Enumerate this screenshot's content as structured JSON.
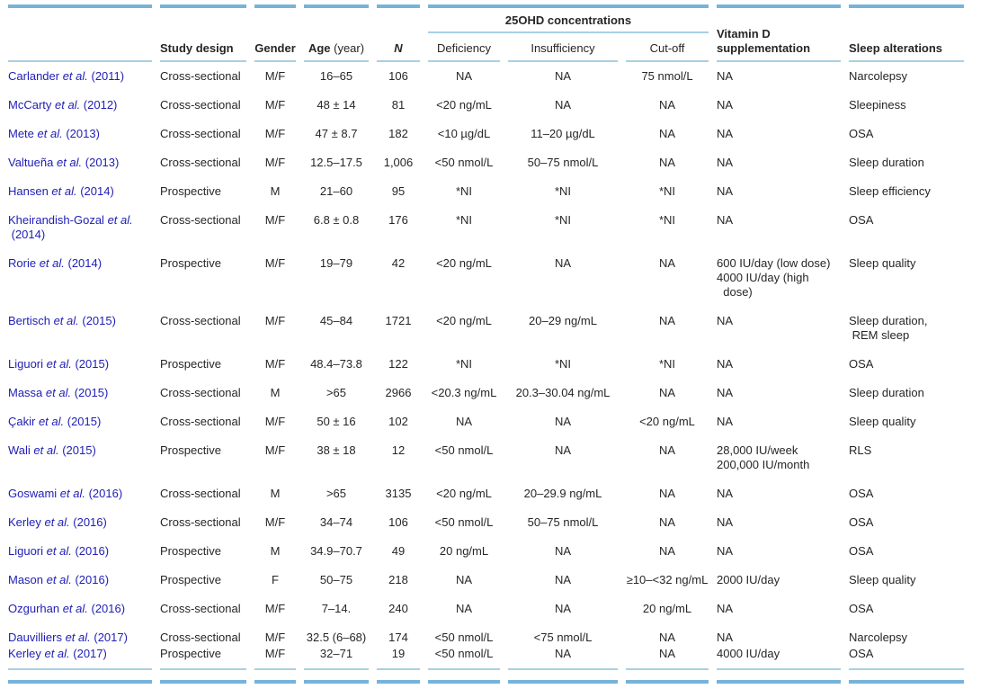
{
  "colors": {
    "bar_blue": "#76b3d9",
    "rule_blue": "#a9cfe5",
    "link_blue": "#2120b6",
    "text": "#262626"
  },
  "table": {
    "group_header": "25OHD concentrations",
    "columns": [
      {
        "key": "study",
        "label": "",
        "align": "left"
      },
      {
        "key": "design",
        "label": "Study design",
        "align": "left"
      },
      {
        "key": "gender",
        "label": "Gender",
        "align": "center"
      },
      {
        "key": "age",
        "label": "Age",
        "label_suffix": " (year)",
        "align": "center"
      },
      {
        "key": "n",
        "label": "N",
        "align": "center"
      },
      {
        "key": "deficiency",
        "label": "Deficiency",
        "align": "center"
      },
      {
        "key": "insufficiency",
        "label": "Insufficiency",
        "align": "center"
      },
      {
        "key": "cutoff",
        "label": "Cut-off",
        "align": "center"
      },
      {
        "key": "vitd",
        "label": "Vitamin D\nsupplementation",
        "align": "left"
      },
      {
        "key": "sleep",
        "label": "Sleep alterations",
        "align": "left"
      }
    ],
    "rows": [
      {
        "cells": [
          "Carlander et al. (2011)",
          "Cross-sectional",
          "M/F",
          "16–65",
          "106",
          "NA",
          "NA",
          "75 nmol/L",
          "NA",
          "Narcolepsy"
        ]
      },
      {
        "cells": [
          "McCarty et al. (2012)",
          "Cross-sectional",
          "M/F",
          "48 ± 14",
          "81",
          "<20 ng/mL",
          "NA",
          "NA",
          "NA",
          "Sleepiness"
        ]
      },
      {
        "cells": [
          "Mete et al. (2013)",
          "Cross-sectional",
          "M/F",
          "47 ± 8.7",
          "182",
          "<10 µg/dL",
          "11–20 µg/dL",
          "NA",
          "NA",
          "OSA"
        ]
      },
      {
        "cells": [
          "Valtueña et al. (2013)",
          "Cross-sectional",
          "M/F",
          "12.5–17.5",
          "1,006",
          "<50 nmol/L",
          "50–75 nmol/L",
          "NA",
          "NA",
          "Sleep duration"
        ]
      },
      {
        "cells": [
          "Hansen et al. (2014)",
          "Prospective",
          "M",
          "21–60",
          "95",
          "*NI",
          "*NI",
          "*NI",
          "NA",
          "Sleep efficiency"
        ]
      },
      {
        "cells": [
          "Kheirandish-Gozal et al.\n (2014)",
          "Cross-sectional",
          "M/F",
          "6.8 ± 0.8",
          "176",
          "*NI",
          "*NI",
          "*NI",
          "NA",
          "OSA"
        ]
      },
      {
        "cells": [
          "Rorie et al. (2014)",
          "Prospective",
          "M/F",
          "19–79",
          "42",
          "<20 ng/mL",
          "NA",
          "NA",
          "600 IU/day (low dose)\n4000 IU/day (high\n  dose)",
          "Sleep quality"
        ]
      },
      {
        "cells": [
          "Bertisch et al. (2015)",
          "Cross-sectional",
          "M/F",
          "45–84",
          "1721",
          "<20 ng/mL",
          "20–29 ng/mL",
          "NA",
          "NA",
          "Sleep duration,\n REM sleep"
        ]
      },
      {
        "cells": [
          "Liguori et al. (2015)",
          "Prospective",
          "M/F",
          "48.4–73.8",
          "122",
          "*NI",
          "*NI",
          "*NI",
          "NA",
          "OSA"
        ]
      },
      {
        "cells": [
          "Massa et al. (2015)",
          "Cross-sectional",
          "M",
          ">65",
          "2966",
          "<20.3 ng/mL",
          "20.3–30.04 ng/mL",
          "NA",
          "NA",
          "Sleep duration"
        ]
      },
      {
        "cells": [
          "Çakir et al. (2015)",
          "Cross-sectional",
          "M/F",
          "50 ± 16",
          "102",
          "NA",
          "NA",
          "<20 ng/mL",
          "NA",
          "Sleep quality"
        ]
      },
      {
        "cells": [
          "Wali et al. (2015)",
          "Prospective",
          "M/F",
          "38 ± 18",
          "12",
          "<50 nmol/L",
          "NA",
          "NA",
          "28,000 IU/week\n200,000 IU/month",
          "RLS"
        ]
      },
      {
        "cells": [
          "Goswami et al. (2016)",
          "Cross-sectional",
          "M",
          ">65",
          "3135",
          "<20 ng/mL",
          "20–29.9 ng/mL",
          "NA",
          "NA",
          "OSA"
        ]
      },
      {
        "cells": [
          "Kerley et al. (2016)",
          "Cross-sectional",
          "M/F",
          "34–74",
          "106",
          "<50 nmol/L",
          "50–75 nmol/L",
          "NA",
          "NA",
          "OSA"
        ]
      },
      {
        "cells": [
          "Liguori et al. (2016)",
          "Prospective",
          "M",
          "34.9–70.7",
          "49",
          "20 ng/mL",
          "NA",
          "NA",
          "NA",
          "OSA"
        ]
      },
      {
        "cells": [
          "Mason et al. (2016)",
          "Prospective",
          "F",
          "50–75",
          "218",
          "NA",
          "NA",
          "≥10–<32 ng/mL",
          "2000 IU/day",
          "Sleep quality"
        ]
      },
      {
        "cells": [
          "Ozgurhan et al. (2016)",
          "Cross-sectional",
          "M/F",
          "7–14.",
          "240",
          "NA",
          "NA",
          "20 ng/mL",
          "NA",
          "OSA"
        ]
      },
      {
        "pad": "first",
        "cells": [
          "Dauvilliers et al. (2017)",
          "Cross-sectional",
          "M/F",
          "32.5 (6–68)",
          "174",
          "<50 nmol/L",
          "<75 nmol/L",
          "NA",
          "NA",
          "Narcolepsy"
        ]
      },
      {
        "pad": "last",
        "cells": [
          "Kerley et al. (2017)",
          "Prospective",
          "M/F",
          "32–71",
          "19",
          "<50 nmol/L",
          "NA",
          "NA",
          "4000 IU/day",
          "OSA"
        ]
      }
    ]
  }
}
